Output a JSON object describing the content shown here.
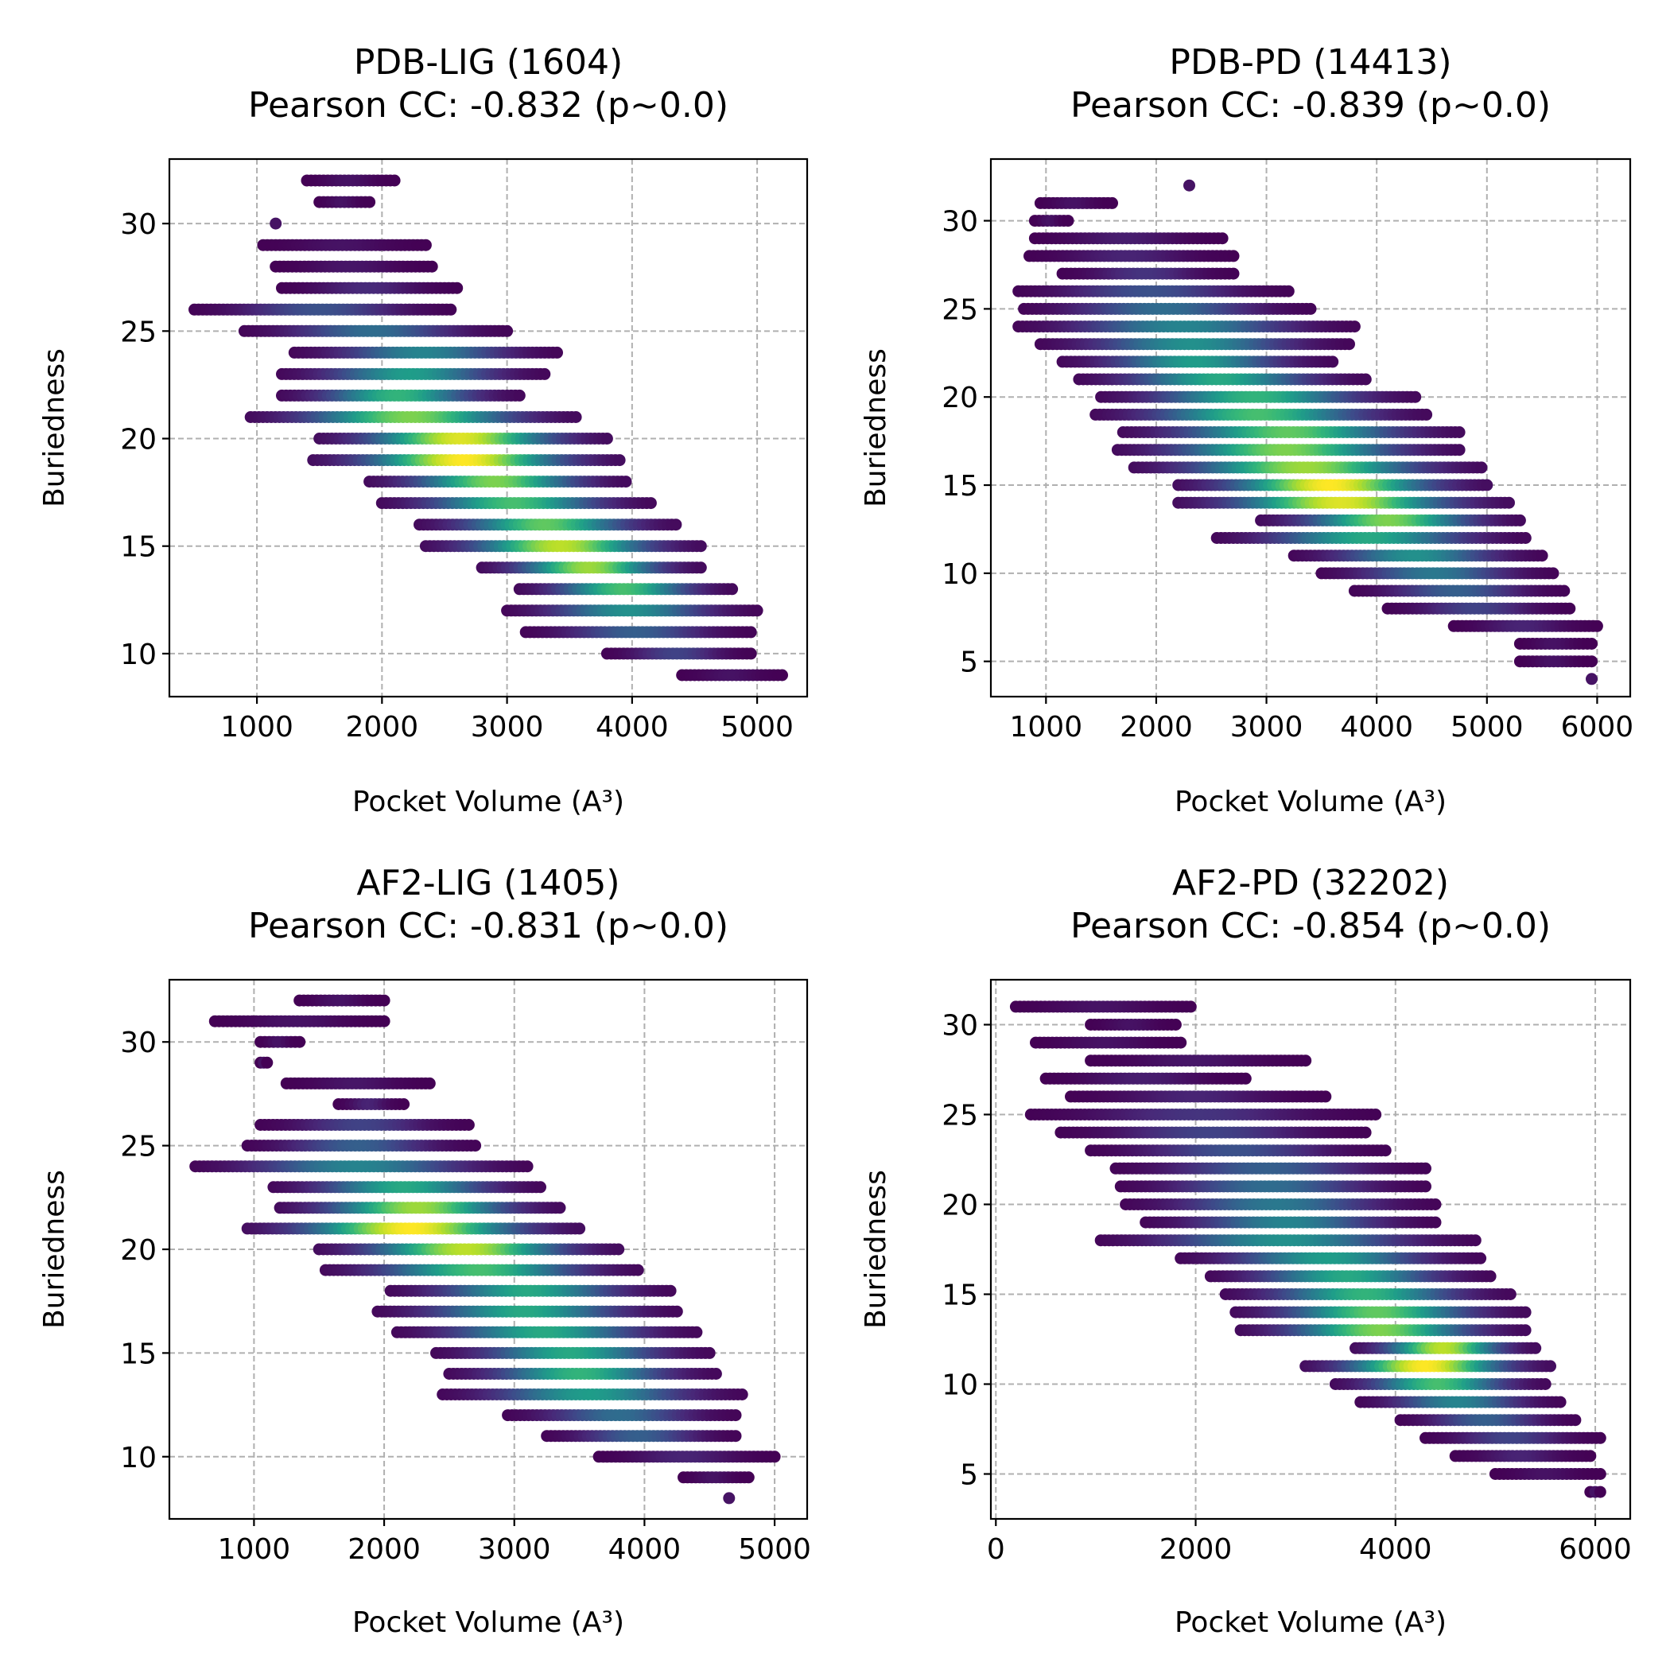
{
  "colors": {
    "colormap": "viridis",
    "low": "#440154",
    "mid": "#21918c",
    "high": "#fde725",
    "grid": "#b0b0b0"
  },
  "chart_data": [
    {
      "type": "scatter",
      "title": "PDB-LIG (1604)",
      "subtitle": "Pearson CC: -0.832 (p~0.0)",
      "xlabel": "Pocket Volume (A³)",
      "ylabel": "Buriedness",
      "xlim": [
        300,
        5400
      ],
      "ylim": [
        8,
        33
      ],
      "xticks": [
        1000,
        2000,
        3000,
        4000,
        5000
      ],
      "yticks": [
        10,
        15,
        20,
        25,
        30
      ],
      "grid": true,
      "color_encoding": "point density (viridis)",
      "bands": [
        {
          "y": 32,
          "x": [
            1400,
            2100
          ],
          "peak": 0.05
        },
        {
          "y": 31,
          "x": [
            1500,
            1900
          ],
          "peak": 0.05
        },
        {
          "y": 30,
          "x": [
            1150,
            1150
          ],
          "peak": 0.05
        },
        {
          "y": 29,
          "x": [
            1050,
            2350
          ],
          "peak": 0.05
        },
        {
          "y": 28,
          "x": [
            1150,
            2400
          ],
          "peak": 0.06
        },
        {
          "y": 27,
          "x": [
            1200,
            2600
          ],
          "peak": 0.12
        },
        {
          "y": 26,
          "x": [
            500,
            2550
          ],
          "peak": 0.25
        },
        {
          "y": 25,
          "x": [
            900,
            3000
          ],
          "peak": 0.35
        },
        {
          "y": 24,
          "x": [
            1300,
            3400
          ],
          "peak": 0.45
        },
        {
          "y": 23,
          "x": [
            1200,
            3300
          ],
          "peak": 0.55
        },
        {
          "y": 22,
          "x": [
            1200,
            3100
          ],
          "peak": 0.65
        },
        {
          "y": 21,
          "x": [
            950,
            3550
          ],
          "peak": 0.8
        },
        {
          "y": 20,
          "x": [
            1500,
            3800
          ],
          "peak": 0.95
        },
        {
          "y": 19,
          "x": [
            1450,
            3900
          ],
          "peak": 1.0
        },
        {
          "y": 18,
          "x": [
            1900,
            3950
          ],
          "peak": 0.8
        },
        {
          "y": 17,
          "x": [
            2000,
            4150
          ],
          "peak": 0.7
        },
        {
          "y": 16,
          "x": [
            2300,
            4350
          ],
          "peak": 0.75
        },
        {
          "y": 15,
          "x": [
            2350,
            4550
          ],
          "peak": 0.9
        },
        {
          "y": 14,
          "x": [
            2800,
            4550
          ],
          "peak": 0.85
        },
        {
          "y": 13,
          "x": [
            3100,
            4800
          ],
          "peak": 0.7
        },
        {
          "y": 12,
          "x": [
            3000,
            5000
          ],
          "peak": 0.5
        },
        {
          "y": 11,
          "x": [
            3150,
            4950
          ],
          "peak": 0.3
        },
        {
          "y": 10,
          "x": [
            3800,
            4950
          ],
          "peak": 0.2
        },
        {
          "y": 9,
          "x": [
            4400,
            5200
          ],
          "peak": 0.05
        }
      ]
    },
    {
      "type": "scatter",
      "title": "PDB-PD (14413)",
      "subtitle": "Pearson CC: -0.839 (p~0.0)",
      "xlabel": "Pocket Volume (A³)",
      "ylabel": "Buriedness",
      "xlim": [
        500,
        6300
      ],
      "ylim": [
        3,
        33.5
      ],
      "xticks": [
        1000,
        2000,
        3000,
        4000,
        5000,
        6000
      ],
      "yticks": [
        5,
        10,
        15,
        20,
        25,
        30
      ],
      "grid": true,
      "color_encoding": "point density (viridis)",
      "bands": [
        {
          "y": 32,
          "x": [
            2300,
            2300
          ],
          "peak": 0.05
        },
        {
          "y": 31,
          "x": [
            950,
            1600
          ],
          "peak": 0.05
        },
        {
          "y": 30,
          "x": [
            900,
            1200
          ],
          "peak": 0.05
        },
        {
          "y": 29,
          "x": [
            900,
            2600
          ],
          "peak": 0.08
        },
        {
          "y": 28,
          "x": [
            850,
            2700
          ],
          "peak": 0.1
        },
        {
          "y": 27,
          "x": [
            1150,
            2700
          ],
          "peak": 0.15
        },
        {
          "y": 26,
          "x": [
            750,
            3200
          ],
          "peak": 0.25
        },
        {
          "y": 25,
          "x": [
            800,
            3400
          ],
          "peak": 0.35
        },
        {
          "y": 24,
          "x": [
            750,
            3800
          ],
          "peak": 0.45
        },
        {
          "y": 23,
          "x": [
            950,
            3750
          ],
          "peak": 0.5
        },
        {
          "y": 22,
          "x": [
            1150,
            3600
          ],
          "peak": 0.55
        },
        {
          "y": 21,
          "x": [
            1300,
            3900
          ],
          "peak": 0.6
        },
        {
          "y": 20,
          "x": [
            1500,
            4350
          ],
          "peak": 0.65
        },
        {
          "y": 19,
          "x": [
            1450,
            4450
          ],
          "peak": 0.7
        },
        {
          "y": 18,
          "x": [
            1700,
            4750
          ],
          "peak": 0.75
        },
        {
          "y": 17,
          "x": [
            1650,
            4750
          ],
          "peak": 0.8
        },
        {
          "y": 16,
          "x": [
            1800,
            4950
          ],
          "peak": 0.85
        },
        {
          "y": 15,
          "x": [
            2200,
            5000
          ],
          "peak": 1.0
        },
        {
          "y": 14,
          "x": [
            2200,
            5200
          ],
          "peak": 0.95
        },
        {
          "y": 13,
          "x": [
            2950,
            5300
          ],
          "peak": 0.8
        },
        {
          "y": 12,
          "x": [
            2550,
            5350
          ],
          "peak": 0.6
        },
        {
          "y": 11,
          "x": [
            3250,
            5500
          ],
          "peak": 0.5
        },
        {
          "y": 10,
          "x": [
            3500,
            5600
          ],
          "peak": 0.4
        },
        {
          "y": 9,
          "x": [
            3800,
            5700
          ],
          "peak": 0.3
        },
        {
          "y": 8,
          "x": [
            4100,
            5750
          ],
          "peak": 0.2
        },
        {
          "y": 7,
          "x": [
            4700,
            6000
          ],
          "peak": 0.1
        },
        {
          "y": 6,
          "x": [
            5300,
            5950
          ],
          "peak": 0.05
        },
        {
          "y": 5,
          "x": [
            5300,
            5950
          ],
          "peak": 0.05
        },
        {
          "y": 4,
          "x": [
            5950,
            5950
          ],
          "peak": 0.05
        }
      ]
    },
    {
      "type": "scatter",
      "title": "AF2-LIG (1405)",
      "subtitle": "Pearson CC: -0.831 (p~0.0)",
      "xlabel": "Pocket Volume (A³)",
      "ylabel": "Buriedness",
      "xlim": [
        350,
        5250
      ],
      "ylim": [
        7,
        33
      ],
      "xticks": [
        1000,
        2000,
        3000,
        4000,
        5000
      ],
      "yticks": [
        10,
        15,
        20,
        25,
        30
      ],
      "grid": true,
      "color_encoding": "point density (viridis)",
      "bands": [
        {
          "y": 32,
          "x": [
            1350,
            2000
          ],
          "peak": 0.05
        },
        {
          "y": 31,
          "x": [
            700,
            2000
          ],
          "peak": 0.05
        },
        {
          "y": 30,
          "x": [
            1050,
            1350
          ],
          "peak": 0.05
        },
        {
          "y": 29,
          "x": [
            1050,
            1100
          ],
          "peak": 0.05
        },
        {
          "y": 28,
          "x": [
            1250,
            2350
          ],
          "peak": 0.06
        },
        {
          "y": 27,
          "x": [
            1650,
            2150
          ],
          "peak": 0.1
        },
        {
          "y": 26,
          "x": [
            1050,
            2650
          ],
          "peak": 0.2
        },
        {
          "y": 25,
          "x": [
            950,
            2700
          ],
          "peak": 0.3
        },
        {
          "y": 24,
          "x": [
            550,
            3100
          ],
          "peak": 0.45
        },
        {
          "y": 23,
          "x": [
            1150,
            3200
          ],
          "peak": 0.6
        },
        {
          "y": 22,
          "x": [
            1200,
            3350
          ],
          "peak": 0.85
        },
        {
          "y": 21,
          "x": [
            950,
            3500
          ],
          "peak": 1.0
        },
        {
          "y": 20,
          "x": [
            1500,
            3800
          ],
          "peak": 0.9
        },
        {
          "y": 19,
          "x": [
            1550,
            3950
          ],
          "peak": 0.7
        },
        {
          "y": 18,
          "x": [
            2050,
            4200
          ],
          "peak": 0.6
        },
        {
          "y": 17,
          "x": [
            1950,
            4250
          ],
          "peak": 0.6
        },
        {
          "y": 16,
          "x": [
            2100,
            4400
          ],
          "peak": 0.6
        },
        {
          "y": 15,
          "x": [
            2400,
            4500
          ],
          "peak": 0.6
        },
        {
          "y": 14,
          "x": [
            2500,
            4550
          ],
          "peak": 0.65
        },
        {
          "y": 13,
          "x": [
            2450,
            4750
          ],
          "peak": 0.55
        },
        {
          "y": 12,
          "x": [
            2950,
            4700
          ],
          "peak": 0.35
        },
        {
          "y": 11,
          "x": [
            3250,
            4700
          ],
          "peak": 0.3
        },
        {
          "y": 10,
          "x": [
            3650,
            5000
          ],
          "peak": 0.1
        },
        {
          "y": 9,
          "x": [
            4300,
            4800
          ],
          "peak": 0.05
        },
        {
          "y": 8,
          "x": [
            4650,
            4650
          ],
          "peak": 0.05
        }
      ]
    },
    {
      "type": "scatter",
      "title": "AF2-PD (32202)",
      "subtitle": "Pearson CC: -0.854 (p~0.0)",
      "xlabel": "Pocket Volume (A³)",
      "ylabel": "Buriedness",
      "xlim": [
        -50,
        6350
      ],
      "ylim": [
        2.5,
        32.5
      ],
      "xticks": [
        0,
        2000,
        4000,
        6000
      ],
      "yticks": [
        5,
        10,
        15,
        20,
        25,
        30
      ],
      "grid": true,
      "color_encoding": "point density (viridis)",
      "bands": [
        {
          "y": 31,
          "x": [
            200,
            1950
          ],
          "peak": 0.05
        },
        {
          "y": 30,
          "x": [
            950,
            1800
          ],
          "peak": 0.05
        },
        {
          "y": 29,
          "x": [
            400,
            1850
          ],
          "peak": 0.05
        },
        {
          "y": 28,
          "x": [
            950,
            3100
          ],
          "peak": 0.06
        },
        {
          "y": 27,
          "x": [
            500,
            2500
          ],
          "peak": 0.08
        },
        {
          "y": 26,
          "x": [
            750,
            3300
          ],
          "peak": 0.1
        },
        {
          "y": 25,
          "x": [
            350,
            3800
          ],
          "peak": 0.15
        },
        {
          "y": 24,
          "x": [
            650,
            3700
          ],
          "peak": 0.2
        },
        {
          "y": 23,
          "x": [
            950,
            3900
          ],
          "peak": 0.25
        },
        {
          "y": 22,
          "x": [
            1200,
            4300
          ],
          "peak": 0.3
        },
        {
          "y": 21,
          "x": [
            1250,
            4300
          ],
          "peak": 0.35
        },
        {
          "y": 20,
          "x": [
            1300,
            4400
          ],
          "peak": 0.4
        },
        {
          "y": 19,
          "x": [
            1500,
            4400
          ],
          "peak": 0.45
        },
        {
          "y": 18,
          "x": [
            1050,
            4800
          ],
          "peak": 0.5
        },
        {
          "y": 17,
          "x": [
            1850,
            4850
          ],
          "peak": 0.55
        },
        {
          "y": 16,
          "x": [
            2150,
            4950
          ],
          "peak": 0.6
        },
        {
          "y": 15,
          "x": [
            2300,
            5150
          ],
          "peak": 0.65
        },
        {
          "y": 14,
          "x": [
            2400,
            5300
          ],
          "peak": 0.75
        },
        {
          "y": 13,
          "x": [
            2450,
            5300
          ],
          "peak": 0.8
        },
        {
          "y": 12,
          "x": [
            3600,
            5400
          ],
          "peak": 0.9
        },
        {
          "y": 11,
          "x": [
            3100,
            5550
          ],
          "peak": 1.0
        },
        {
          "y": 10,
          "x": [
            3400,
            5500
          ],
          "peak": 0.7
        },
        {
          "y": 9,
          "x": [
            3650,
            5650
          ],
          "peak": 0.45
        },
        {
          "y": 8,
          "x": [
            4050,
            5800
          ],
          "peak": 0.3
        },
        {
          "y": 7,
          "x": [
            4300,
            6050
          ],
          "peak": 0.2
        },
        {
          "y": 6,
          "x": [
            4600,
            5950
          ],
          "peak": 0.1
        },
        {
          "y": 5,
          "x": [
            5000,
            6050
          ],
          "peak": 0.05
        },
        {
          "y": 4,
          "x": [
            5950,
            6050
          ],
          "peak": 0.05
        }
      ]
    }
  ]
}
